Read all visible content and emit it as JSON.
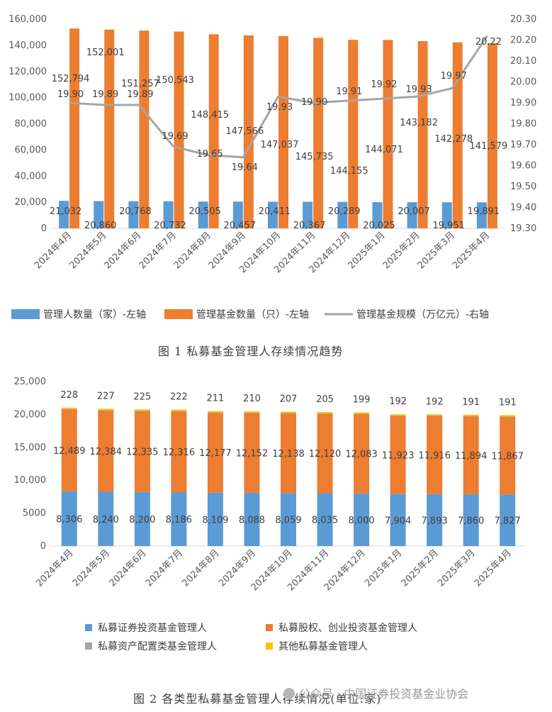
{
  "chart_data": [
    {
      "type": "bar",
      "categories": [
        "2024年4月",
        "2024年5月",
        "2024年6月",
        "2024年7月",
        "2024年8月",
        "2024年9月",
        "2024年10月",
        "2024年11月",
        "2024年12月",
        "2025年1月",
        "2025年2月",
        "2025年3月",
        "2025年4月"
      ],
      "series": [
        {
          "name": "管理人数量（家）-左轴",
          "type": "bar",
          "axis": "left",
          "color": "#5B9BD5",
          "values": [
            21032,
            20860,
            20768,
            20732,
            20505,
            20457,
            20411,
            20367,
            20289,
            20025,
            20007,
            19951,
            19891
          ],
          "labels": [
            "21,032",
            "20,860",
            "20,768",
            "20,732",
            "20,505",
            "20,457",
            "20,411",
            "20,367",
            "20,289",
            "20,025",
            "20,007",
            "19,951",
            "19,891"
          ]
        },
        {
          "name": "管理基金数量（只）-左轴",
          "type": "bar",
          "axis": "left",
          "color": "#ED7D31",
          "values": [
            152794,
            152001,
            151257,
            150543,
            148415,
            147566,
            147037,
            145735,
            144155,
            144071,
            143182,
            142278,
            141579
          ],
          "labels": [
            "152,794",
            "152,001",
            "151,257",
            "150,543",
            "148,415",
            "147,566",
            "147,037",
            "145,735",
            "144,155",
            "144,071",
            "143,182",
            "142,278",
            "141,579"
          ]
        },
        {
          "name": "管理基金规模（万亿元）-右轴",
          "type": "line",
          "axis": "right",
          "color": "#A5A5A5",
          "values": [
            19.9,
            19.89,
            19.89,
            19.69,
            19.65,
            19.64,
            19.93,
            19.9,
            19.91,
            19.92,
            19.93,
            19.97,
            20.22
          ],
          "labels": [
            "19.90",
            "19.89",
            "19.89",
            "19.69",
            "19.65",
            "19.64",
            "19.93",
            "19.90",
            "19.91",
            "19.92",
            "19.93",
            "19.97",
            "20.22"
          ]
        }
      ],
      "ylim_left": [
        0,
        160000
      ],
      "ylim_right": [
        19.3,
        20.3
      ],
      "left_ticks": [
        "0",
        "20,000",
        "40,000",
        "60,000",
        "80,000",
        "100,000",
        "120,000",
        "140,000",
        "160,000"
      ],
      "right_ticks": [
        "19.30",
        "19.40",
        "19.50",
        "19.60",
        "19.70",
        "19.80",
        "19.90",
        "20.00",
        "20.10",
        "20.20",
        "20.30"
      ],
      "legend": "bottom",
      "grid": false,
      "caption": "图 1  私募基金管理人存续情况趋势"
    },
    {
      "type": "bar",
      "stacked": true,
      "categories": [
        "2024年4月",
        "2024年5月",
        "2024年6月",
        "2024年7月",
        "2024年8月",
        "2024年9月",
        "2024年10月",
        "2024年11月",
        "2024年12月",
        "2025年1月",
        "2025年2月",
        "2025年3月",
        "2025年4月"
      ],
      "series": [
        {
          "name": "私募证券投资基金管理人",
          "color": "#5B9BD5",
          "values": [
            8306,
            8240,
            8200,
            8186,
            8109,
            8088,
            8059,
            8035,
            8000,
            7904,
            7893,
            7860,
            7827
          ],
          "labels": [
            "8,306",
            "8,240",
            "8,200",
            "8,186",
            "8,109",
            "8,088",
            "8,059",
            "8,035",
            "8,000",
            "7,904",
            "7,893",
            "7,860",
            "7,827"
          ]
        },
        {
          "name": "私募股权、创业投资基金管理人",
          "color": "#ED7D31",
          "values": [
            12489,
            12384,
            12335,
            12316,
            12177,
            12152,
            12138,
            12120,
            12083,
            11923,
            11916,
            11894,
            11867
          ],
          "labels": [
            "12,489",
            "12,384",
            "12,335",
            "12,316",
            "12,177",
            "12,152",
            "12,138",
            "12,120",
            "12,083",
            "11,923",
            "11,916",
            "11,894",
            "11,867"
          ]
        },
        {
          "name": "私募资产配置类基金管理人",
          "color": "#A5A5A5",
          "values": [
            9,
            9,
            9,
            9,
            9,
            9,
            9,
            9,
            9,
            9,
            9,
            9,
            9
          ],
          "labels": []
        },
        {
          "name": "其他私募基金管理人",
          "color": "#FFC000",
          "values": [
            228,
            227,
            225,
            222,
            211,
            210,
            207,
            205,
            199,
            192,
            192,
            191,
            191
          ],
          "labels": [
            "228",
            "227",
            "225",
            "222",
            "211",
            "210",
            "207",
            "205",
            "199",
            "192",
            "192",
            "191",
            "191"
          ]
        }
      ],
      "ylim": [
        0,
        25000
      ],
      "y_ticks": [
        "0",
        "5000",
        "10,000",
        "15,000",
        "20,000",
        "25,000"
      ],
      "legend": "bottom",
      "grid": false,
      "caption": "图 2  各类型私募基金管理人存续情况(单位:家)"
    }
  ],
  "watermark": "公众号 · 中国证券投资基金业协会"
}
